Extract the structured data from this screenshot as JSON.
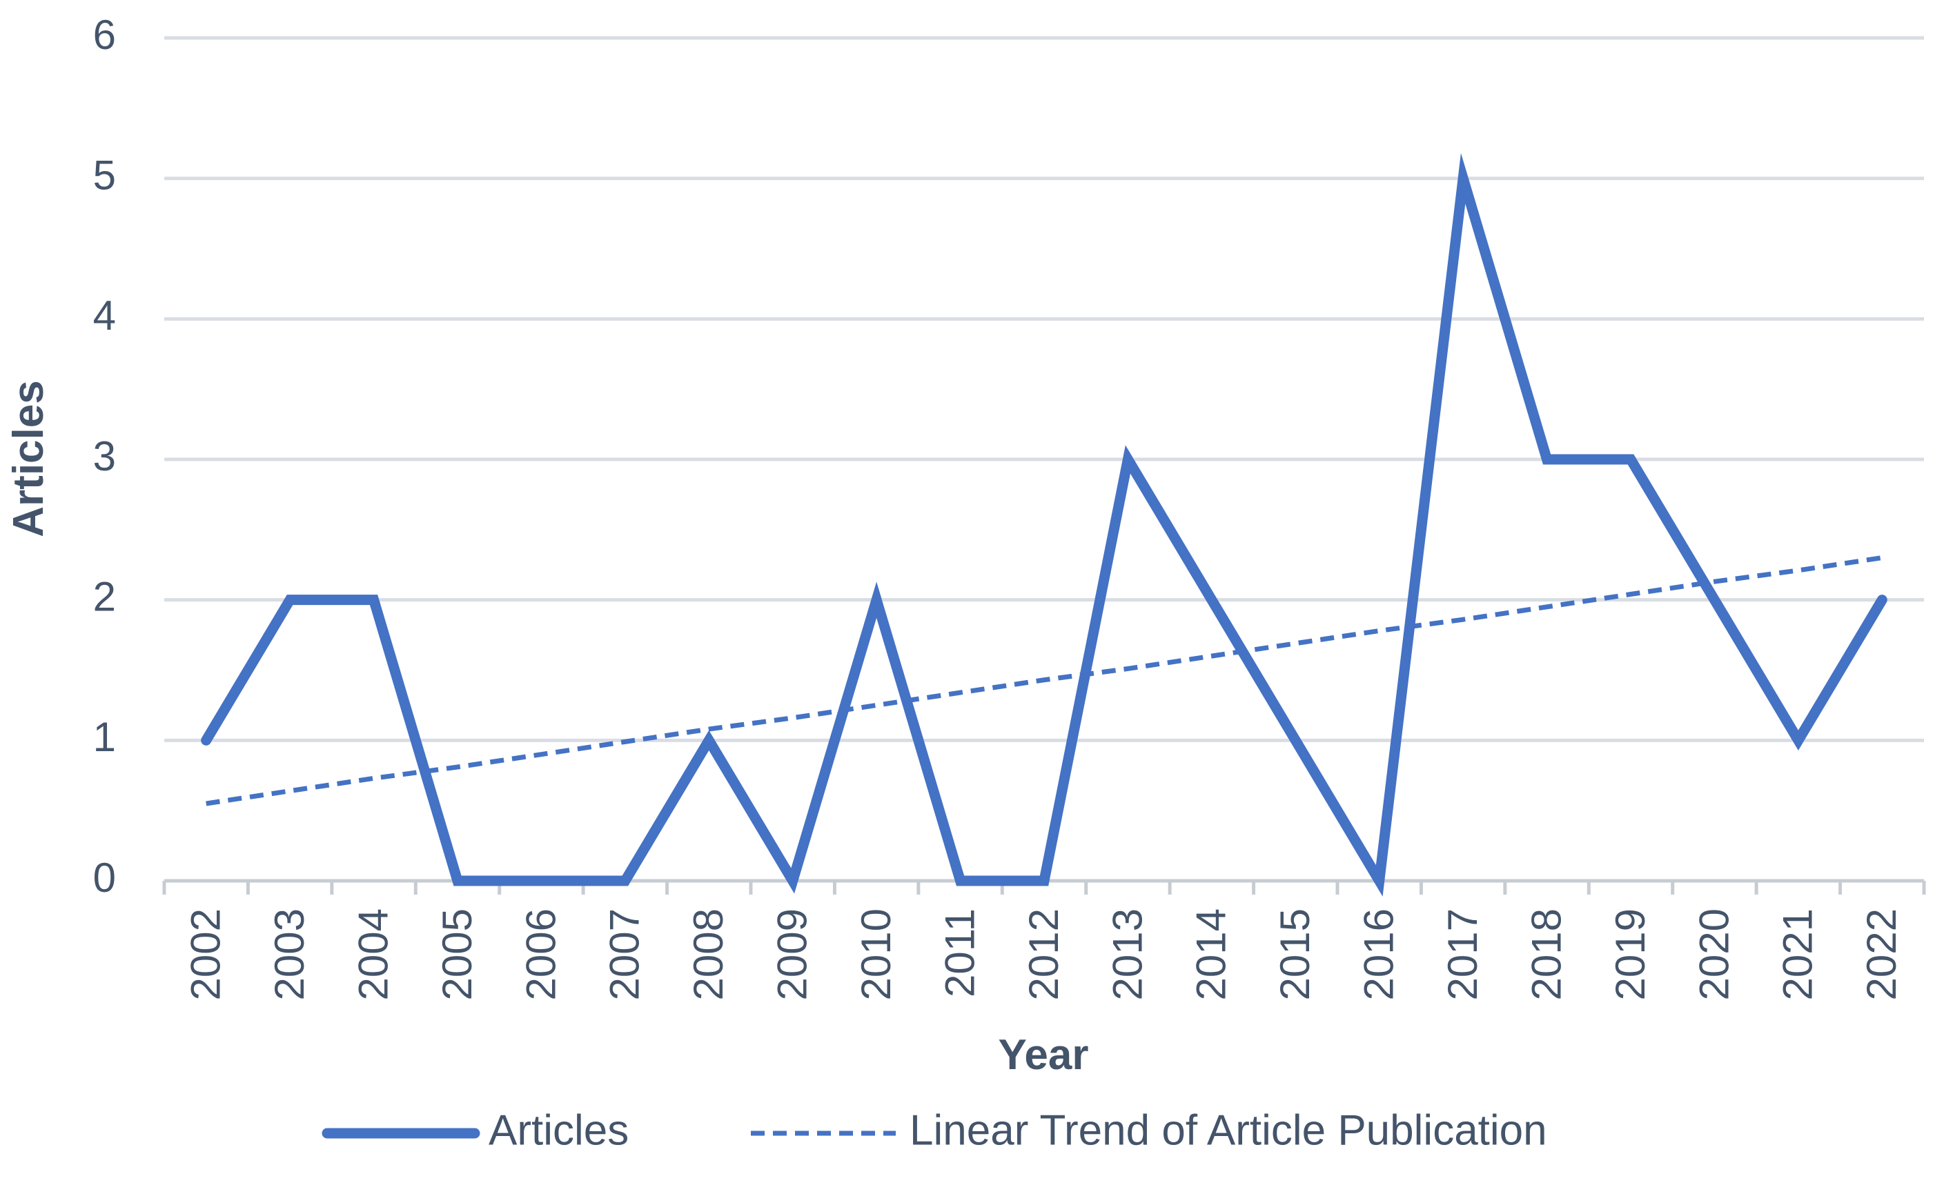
{
  "chart_data": {
    "type": "line",
    "title": "",
    "xlabel": "Year",
    "ylabel": "Articles",
    "ylim": [
      0,
      6
    ],
    "yticks": [
      "0",
      "1",
      "2",
      "3",
      "4",
      "5",
      "6"
    ],
    "categories": [
      "2002",
      "2003",
      "2004",
      "2005",
      "2006",
      "2007",
      "2008",
      "2009",
      "2010",
      "2011",
      "2012",
      "2013",
      "2014",
      "2015",
      "2016",
      "2017",
      "2018",
      "2019",
      "2020",
      "2021",
      "2022"
    ],
    "grid": true,
    "legend_position": "bottom",
    "series": [
      {
        "name": "Articles",
        "style": "solid",
        "color": "#4472c4",
        "values": [
          1,
          2,
          2,
          0,
          0,
          0,
          1,
          0,
          2,
          0,
          0,
          3,
          2,
          1,
          0,
          5,
          3,
          3,
          2,
          1,
          2
        ]
      },
      {
        "name": "Linear Trend of Article Publication",
        "style": "dashed",
        "color": "#4472c4",
        "values": [
          0.55,
          0.64,
          0.73,
          0.81,
          0.9,
          0.99,
          1.08,
          1.16,
          1.25,
          1.34,
          1.43,
          1.51,
          1.6,
          1.69,
          1.78,
          1.86,
          1.95,
          2.04,
          2.13,
          2.21,
          2.3
        ]
      }
    ]
  }
}
